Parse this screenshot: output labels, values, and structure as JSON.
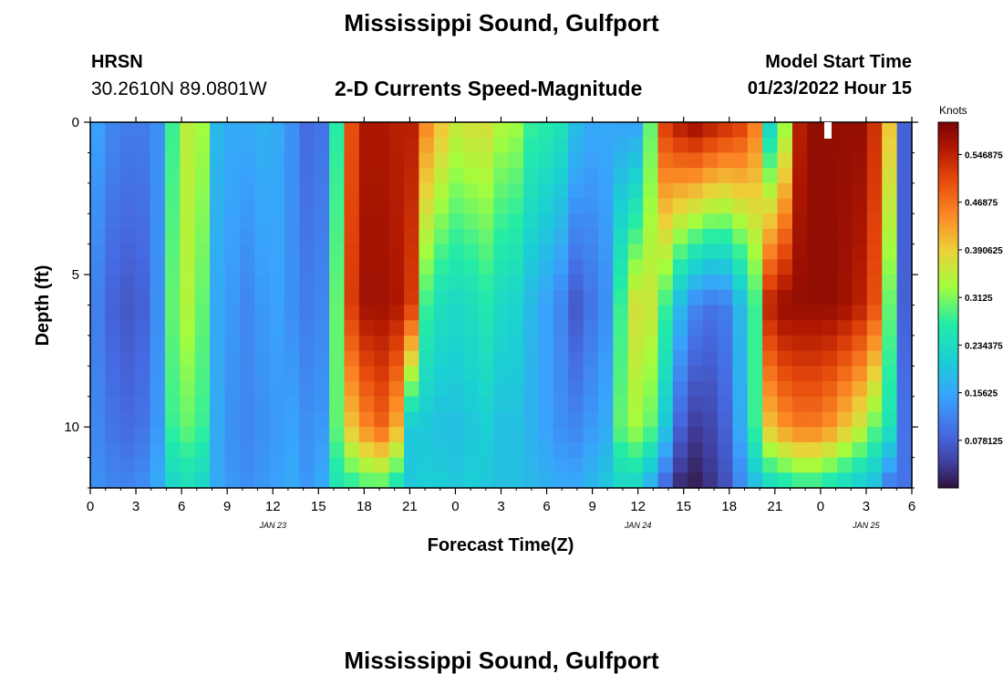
{
  "header": {
    "title": "Mississippi Sound, Gulfport",
    "station": "HRSN",
    "coords": "30.2610N  89.0801W",
    "subtitle": "2-D Currents Speed-Magnitude",
    "model_start_label": "Model Start Time",
    "model_start_value": "01/23/2022 Hour 15"
  },
  "footer": {
    "title": "Mississippi Sound, Gulfport"
  },
  "chart_data": {
    "type": "heatmap",
    "title": "2-D Currents Speed-Magnitude",
    "xlabel": "Forecast Time(Z)",
    "ylabel": "Depth (ft)",
    "x_tick_labels": [
      "0",
      "3",
      "6",
      "9",
      "12",
      "15",
      "18",
      "21",
      "0",
      "3",
      "6",
      "9",
      "12",
      "15",
      "18",
      "21",
      "0",
      "3",
      "6"
    ],
    "x_tick_hours": [
      0,
      3,
      6,
      9,
      12,
      15,
      18,
      21,
      24,
      27,
      30,
      33,
      36,
      39,
      42,
      45,
      48,
      51,
      54
    ],
    "date_labels": [
      {
        "text": "JAN 23",
        "hour": 12
      },
      {
        "text": "JAN 24",
        "hour": 36
      },
      {
        "text": "JAN 25",
        "hour": 51
      }
    ],
    "x_range_hours": [
      0,
      54
    ],
    "y_tick_labels": [
      "0",
      "5",
      "10"
    ],
    "y_tick_values": [
      0,
      5,
      10
    ],
    "y_range_ft": [
      0,
      12
    ],
    "y_inverted": true,
    "colorbar": {
      "label": "Knots",
      "tick_labels": [
        "0.078125",
        "0.15625",
        "0.234375",
        "0.3125",
        "0.390625",
        "0.46875",
        "0.546875"
      ],
      "tick_values": [
        0.078125,
        0.15625,
        0.234375,
        0.3125,
        0.390625,
        0.46875,
        0.546875
      ],
      "range": [
        0.0,
        0.6
      ],
      "colormap": "turbo"
    },
    "time_hours": [
      0,
      1,
      2,
      3,
      4,
      5,
      6,
      7,
      8,
      9,
      10,
      11,
      12,
      13,
      14,
      15,
      16,
      17,
      18,
      19,
      20,
      21,
      22,
      23,
      24,
      25,
      26,
      27,
      28,
      29,
      30,
      31,
      32,
      33,
      34,
      35,
      36,
      37,
      38,
      39,
      40,
      41,
      42,
      43,
      44,
      45,
      46,
      47,
      48,
      49,
      50,
      51,
      52,
      53,
      54
    ],
    "depth_ft": [
      0,
      6,
      10,
      12
    ],
    "speed_knots": [
      [
        0.15,
        0.12,
        0.11,
        0.11,
        0.13,
        0.28,
        0.35,
        0.33,
        0.18,
        0.16,
        0.16,
        0.17,
        0.16,
        0.13,
        0.09,
        0.1,
        0.27,
        0.5,
        0.56,
        0.56,
        0.55,
        0.55,
        0.45,
        0.4,
        0.36,
        0.37,
        0.37,
        0.34,
        0.33,
        0.28,
        0.27,
        0.25,
        0.19,
        0.16,
        0.16,
        0.15,
        0.15,
        0.3,
        0.52,
        0.56,
        0.58,
        0.56,
        0.54,
        0.52,
        0.46,
        0.22,
        0.32,
        0.55,
        0.58,
        0.58,
        0.58,
        0.58,
        0.53,
        0.4,
        0.08
      ],
      [
        0.11,
        0.08,
        0.07,
        0.08,
        0.13,
        0.3,
        0.34,
        0.3,
        0.16,
        0.14,
        0.12,
        0.14,
        0.15,
        0.13,
        0.11,
        0.12,
        0.3,
        0.52,
        0.57,
        0.57,
        0.56,
        0.52,
        0.28,
        0.24,
        0.23,
        0.24,
        0.26,
        0.23,
        0.22,
        0.18,
        0.15,
        0.12,
        0.07,
        0.1,
        0.13,
        0.28,
        0.37,
        0.36,
        0.28,
        0.18,
        0.12,
        0.1,
        0.11,
        0.18,
        0.28,
        0.55,
        0.58,
        0.58,
        0.58,
        0.58,
        0.57,
        0.55,
        0.5,
        0.3,
        0.08
      ],
      [
        0.12,
        0.1,
        0.09,
        0.1,
        0.14,
        0.28,
        0.3,
        0.28,
        0.16,
        0.13,
        0.12,
        0.13,
        0.14,
        0.15,
        0.13,
        0.14,
        0.3,
        0.4,
        0.45,
        0.48,
        0.42,
        0.2,
        0.2,
        0.19,
        0.19,
        0.2,
        0.21,
        0.19,
        0.19,
        0.17,
        0.15,
        0.13,
        0.12,
        0.14,
        0.16,
        0.3,
        0.33,
        0.3,
        0.2,
        0.08,
        0.04,
        0.05,
        0.08,
        0.16,
        0.28,
        0.4,
        0.44,
        0.46,
        0.46,
        0.44,
        0.4,
        0.36,
        0.3,
        0.25,
        0.1
      ],
      [
        0.13,
        0.12,
        0.12,
        0.13,
        0.16,
        0.22,
        0.24,
        0.22,
        0.16,
        0.14,
        0.13,
        0.14,
        0.15,
        0.16,
        0.14,
        0.16,
        0.25,
        0.26,
        0.28,
        0.28,
        0.24,
        0.2,
        0.21,
        0.21,
        0.2,
        0.21,
        0.2,
        0.19,
        0.19,
        0.18,
        0.17,
        0.16,
        0.16,
        0.18,
        0.2,
        0.22,
        0.22,
        0.16,
        0.08,
        0.02,
        0.01,
        0.03,
        0.06,
        0.12,
        0.18,
        0.22,
        0.24,
        0.26,
        0.26,
        0.24,
        0.22,
        0.2,
        0.18,
        0.1,
        0.1
      ]
    ]
  }
}
